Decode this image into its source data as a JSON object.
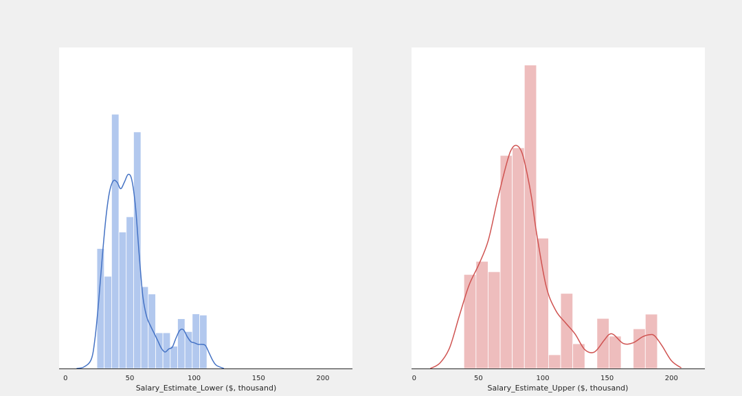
{
  "chart_data": [
    {
      "type": "bar",
      "subtype": "histogram_with_kde",
      "xlabel": "Salary_Estimate_Lower ($, thousand)",
      "ylabel": "",
      "xlim": [
        -5,
        223
      ],
      "xticks": [
        0,
        50,
        100,
        150,
        200
      ],
      "y_axis_visible": false,
      "grid": false,
      "bar_color": "#b2c8ee",
      "line_color": "#4472c4",
      "bins": [
        {
          "x0": 24.4,
          "x1": 30.1,
          "count": 39.3
        },
        {
          "x0": 30.1,
          "x1": 35.8,
          "count": 30.2
        },
        {
          "x0": 35.8,
          "x1": 41.5,
          "count": 83.3
        },
        {
          "x0": 41.5,
          "x1": 47.2,
          "count": 44.7
        },
        {
          "x0": 47.2,
          "x1": 52.9,
          "count": 49.7
        },
        {
          "x0": 52.9,
          "x1": 58.6,
          "count": 77.5
        },
        {
          "x0": 58.6,
          "x1": 64.3,
          "count": 26.8
        },
        {
          "x0": 64.3,
          "x1": 70.0,
          "count": 24.4
        },
        {
          "x0": 70.0,
          "x1": 75.7,
          "count": 11.7
        },
        {
          "x0": 75.7,
          "x1": 81.4,
          "count": 11.7
        },
        {
          "x0": 81.4,
          "x1": 87.1,
          "count": 7.3
        },
        {
          "x0": 87.1,
          "x1": 92.8,
          "count": 16.3
        },
        {
          "x0": 92.8,
          "x1": 98.5,
          "count": 12.1
        },
        {
          "x0": 98.5,
          "x1": 104.2,
          "count": 17.9
        },
        {
          "x0": 104.2,
          "x1": 109.9,
          "count": 17.5
        }
      ],
      "kde": {
        "x": [
          8.6,
          14.3,
          20.0,
          22.9,
          25.7,
          28.6,
          31.5,
          34.3,
          37.2,
          40.1,
          42.9,
          45.8,
          48.7,
          51.5,
          54.4,
          57.2,
          60.1,
          63.0,
          65.8,
          68.7,
          71.6,
          74.4,
          77.3,
          80.2,
          83.0,
          85.9,
          88.8,
          91.6,
          94.5,
          97.4,
          100.2,
          103.1,
          106.0,
          108.8,
          111.7,
          114.6,
          117.4,
          123.1
        ],
        "y": [
          0,
          0.5,
          3.0,
          9.8,
          21.7,
          36.7,
          49.8,
          58.1,
          61.5,
          61.0,
          58.9,
          61.1,
          63.6,
          61.8,
          52.9,
          37.6,
          23.6,
          17.1,
          14.2,
          11.7,
          9.2,
          6.7,
          5.4,
          6.4,
          7.0,
          10.0,
          12.5,
          12.7,
          10.5,
          8.8,
          8.4,
          7.9,
          7.9,
          7.5,
          5.0,
          2.5,
          1.0,
          0
        ]
      }
    },
    {
      "type": "bar",
      "subtype": "histogram_with_kde",
      "xlabel": "Salary_Estimate_Upper ($, thousand)",
      "ylabel": "",
      "xlim": [
        -2,
        226
      ],
      "xticks": [
        0,
        50,
        100,
        150,
        200
      ],
      "y_axis_visible": false,
      "grid": false,
      "bar_color": "#eebdbd",
      "line_color": "#cf5250",
      "bins": [
        {
          "x0": 38.7,
          "x1": 48.1,
          "count": 30.8
        },
        {
          "x0": 48.1,
          "x1": 57.5,
          "count": 35.1
        },
        {
          "x0": 57.5,
          "x1": 66.9,
          "count": 31.7
        },
        {
          "x0": 66.9,
          "x1": 76.3,
          "count": 69.8
        },
        {
          "x0": 76.3,
          "x1": 85.7,
          "count": 72.3
        },
        {
          "x0": 85.7,
          "x1": 95.1,
          "count": 99.4
        },
        {
          "x0": 95.1,
          "x1": 104.5,
          "count": 42.7
        },
        {
          "x0": 104.5,
          "x1": 113.9,
          "count": 4.5
        },
        {
          "x0": 113.9,
          "x1": 123.3,
          "count": 24.6
        },
        {
          "x0": 123.3,
          "x1": 132.7,
          "count": 8.1
        },
        {
          "x0": 132.7,
          "x1": 142.1,
          "count": 0
        },
        {
          "x0": 142.1,
          "x1": 151.5,
          "count": 16.4
        },
        {
          "x0": 151.5,
          "x1": 160.9,
          "count": 10.6
        },
        {
          "x0": 160.9,
          "x1": 170.3,
          "count": 0
        },
        {
          "x0": 170.3,
          "x1": 179.7,
          "count": 13.0
        },
        {
          "x0": 179.7,
          "x1": 189.1,
          "count": 17.8
        }
      ],
      "kde": {
        "x": [
          12.6,
          20.1,
          27.6,
          35.1,
          42.6,
          50.1,
          57.6,
          65.1,
          72.6,
          76.4,
          80.1,
          83.9,
          87.6,
          91.4,
          95.1,
          102.6,
          110.1,
          117.6,
          125.1,
          132.6,
          140.1,
          147.6,
          151.4,
          155.1,
          162.6,
          170.1,
          177.6,
          183.2,
          186.9,
          192.6,
          200.1,
          207.6
        ],
        "y": [
          0,
          1.8,
          6.8,
          17.2,
          27.2,
          33.9,
          41.9,
          55.8,
          68.2,
          72.3,
          73.0,
          70.6,
          64.3,
          55.7,
          44.6,
          27.0,
          19.0,
          15.0,
          11.3,
          6.2,
          5.4,
          9.2,
          11.1,
          11.1,
          8.2,
          8.4,
          10.4,
          11.1,
          10.7,
          7.5,
          2.5,
          0.2
        ]
      }
    }
  ]
}
